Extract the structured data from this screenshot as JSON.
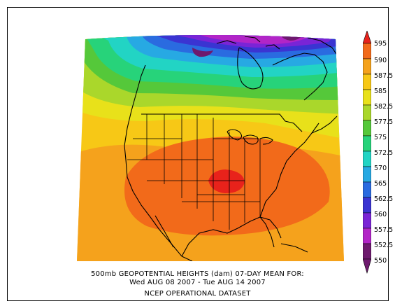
{
  "caption": {
    "line1": "500mb GEOPOTENTIAL HEIGHTS (dam)    07-DAY MEAN FOR:",
    "line2": "Wed AUG 08 2007 - Tue AUG 14 2007",
    "line3": "NCEP OPERATIONAL DATASET"
  },
  "colorbar": {
    "labels": [
      "595",
      "590",
      "587.5",
      "585",
      "582.5",
      "577.5",
      "575",
      "572.5",
      "570",
      "565",
      "562.5",
      "560",
      "557.5",
      "552.5",
      "550"
    ],
    "colors": {
      "595": "#e8221b",
      "590": "#f26a1a",
      "587.5": "#f5a21c",
      "585": "#f7c816",
      "582.5": "#e8e11a",
      "577.5": "#aad72b",
      "575": "#55c83a",
      "572.5": "#27d37a",
      "570": "#22d4c4",
      "565": "#27a9e3",
      "562.5": "#2a6be0",
      "560": "#3a34d2",
      "557.5": "#7a24d6",
      "552.5": "#b225c7",
      "550": "#6e1a6e"
    }
  },
  "map": {
    "field": "500mb geopotential heights",
    "region": "North America"
  }
}
